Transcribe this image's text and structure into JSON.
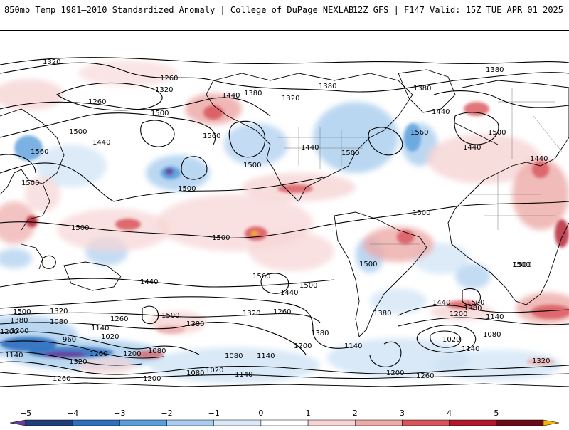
{
  "header": {
    "left_title": "850mb Temp 1981–2010 Standardized Anomaly | College of DuPage NEXLAB",
    "right_title": "12Z GFS | F147 Valid: 15Z TUE APR 01 2025"
  },
  "colorbar": {
    "ticks": [
      "−5",
      "−4",
      "−3",
      "−2",
      "−1",
      "0",
      "1",
      "2",
      "3",
      "4",
      "5"
    ],
    "colors": [
      "#6a3d9a",
      "#1f3f7a",
      "#2f6fbf",
      "#5a9fdc",
      "#a9cdee",
      "#dbe9f7",
      "#ffffff",
      "#f6d4d4",
      "#ecaaa8",
      "#d9545a",
      "#b2182b",
      "#6b0b1a",
      "#f5b800"
    ]
  },
  "contour_labels": [
    "1320",
    "1380",
    "1260",
    "1320",
    "1260",
    "1380",
    "1440",
    "1380",
    "1320",
    "1380",
    "1500",
    "1500",
    "1560",
    "1440",
    "1500",
    "1560",
    "1440",
    "1500",
    "1440",
    "1560",
    "1500",
    "1500",
    "1500",
    "1440",
    "1500",
    "1500",
    "1500",
    "1500",
    "1440",
    "1560",
    "1500",
    "1500",
    "1440",
    "1500",
    "1320",
    "1380",
    "1500",
    "1260",
    "1320",
    "1080",
    "1140",
    "1020",
    "960",
    "1200",
    "1140",
    "1260",
    "1200",
    "1080",
    "1380",
    "1320",
    "1260",
    "1380",
    "1200",
    "1140",
    "1080",
    "1140",
    "1020",
    "1200",
    "1080",
    "1140",
    "1440",
    "1500",
    "1200",
    "1380",
    "1140",
    "1020",
    "1080",
    "1140",
    "1200",
    "1260",
    "1320",
    "1260",
    "1200",
    "1380",
    "1500",
    "1440"
  ]
}
